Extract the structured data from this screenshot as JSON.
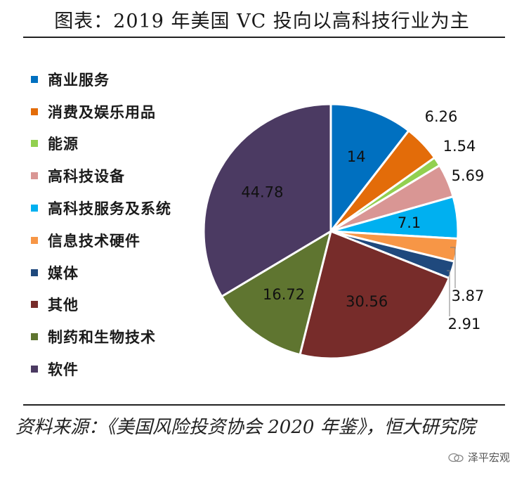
{
  "title": "图表：2019 年美国 VC 投向以高科技行业为主",
  "source": "资料来源：《美国风险投资协会 2020 年鉴》，恒大研究院",
  "watermark": "泽平宏观",
  "chart_data": {
    "type": "pie",
    "legend_position": "left",
    "start_angle_deg": 90,
    "direction": "clockwise",
    "slices": [
      {
        "label": "商业服务",
        "value": 14,
        "display": "14",
        "color": "#0070C0"
      },
      {
        "label": "消费及娱乐用品",
        "value": 6.26,
        "display": "6.26",
        "color": "#E36C09"
      },
      {
        "label": "能源",
        "value": 1.54,
        "display": "1.54",
        "color": "#92D050"
      },
      {
        "label": "高科技设备",
        "value": 5.69,
        "display": "5.69",
        "color": "#D99694"
      },
      {
        "label": "高科技服务及系统",
        "value": 7.1,
        "display": "7.1",
        "color": "#00B0F0"
      },
      {
        "label": "信息技术硬件",
        "value": 3.87,
        "display": "3.87",
        "color": "#F79646"
      },
      {
        "label": "媒体",
        "value": 2.91,
        "display": "2.91",
        "color": "#1F497D"
      },
      {
        "label": "其他",
        "value": 30.56,
        "display": "30.56",
        "color": "#772C2A"
      },
      {
        "label": "制药和生物技术",
        "value": 16.72,
        "display": "16.72",
        "color": "#5F7530"
      },
      {
        "label": "软件",
        "value": 44.78,
        "display": "44.78",
        "color": "#4B3A62"
      }
    ]
  }
}
